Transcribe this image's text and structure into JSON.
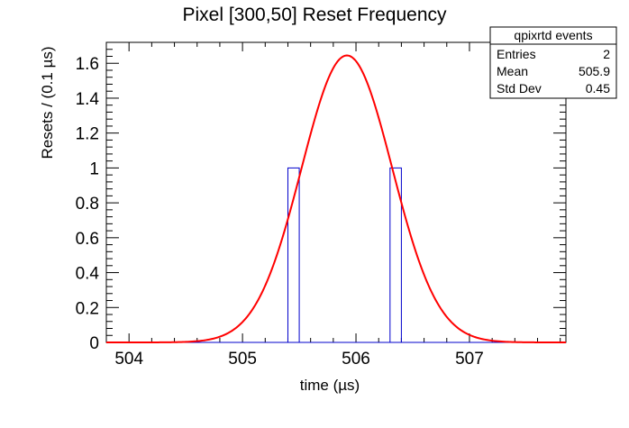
{
  "chart_data": {
    "type": "histogram_with_fit",
    "title": "Pixel [300,50] Reset Frequency",
    "xlabel": "time (µs)",
    "ylabel": "Resets / (0.1 µs)",
    "xlim": [
      503.8,
      507.85
    ],
    "ylim": [
      0,
      1.72
    ],
    "x_ticks": [
      504,
      505,
      506,
      507
    ],
    "x_tick_labels": [
      "504",
      "505",
      "506",
      "507"
    ],
    "y_ticks": [
      0,
      0.2,
      0.4,
      0.6,
      0.8,
      1.0,
      1.2,
      1.4,
      1.6
    ],
    "y_tick_labels": [
      "0",
      "0.2",
      "0.4",
      "0.6",
      "0.8",
      "1",
      "1.2",
      "1.4",
      "1.6"
    ],
    "histogram": {
      "name": "qpixrtd events",
      "bin_width": 0.1,
      "bins": [
        {
          "x_low": 505.4,
          "x_high": 505.5,
          "value": 1
        },
        {
          "x_low": 506.3,
          "x_high": 506.4,
          "value": 1
        }
      ],
      "color": "#0000cc"
    },
    "fit_curve": {
      "type": "gaussian",
      "amplitude": 1.645,
      "mean": 505.92,
      "sigma": 0.4,
      "x_range": [
        503.8,
        507.85
      ],
      "color": "#ff0000"
    },
    "stats_box": {
      "title": "qpixrtd events",
      "rows": [
        {
          "label": "Entries",
          "value": "2"
        },
        {
          "label": "Mean",
          "value": "505.9"
        },
        {
          "label": "Std Dev",
          "value": "0.45"
        }
      ]
    },
    "grid": false
  }
}
